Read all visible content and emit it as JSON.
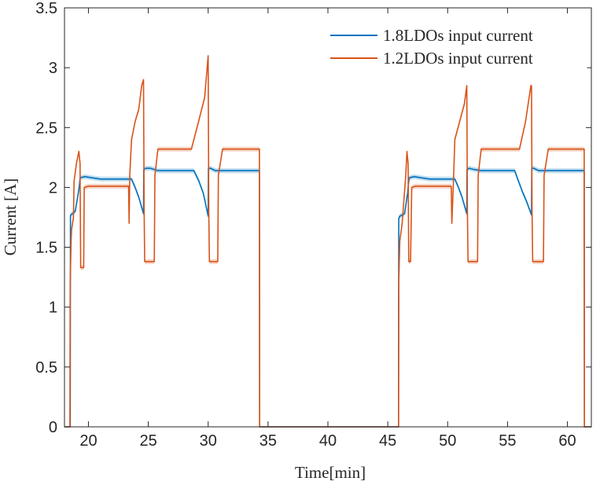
{
  "chart_data": {
    "type": "line",
    "title": "",
    "xlabel": "Time[min]",
    "ylabel": "Current [A]",
    "xlim": [
      18,
      62
    ],
    "ylim": [
      0,
      3.5
    ],
    "xticks": [
      20,
      25,
      30,
      35,
      40,
      45,
      50,
      55,
      60
    ],
    "yticks": [
      0,
      0.5,
      1,
      1.5,
      2,
      2.5,
      3,
      3.5
    ],
    "xtick_labels": [
      "20",
      "25",
      "30",
      "35",
      "40",
      "45",
      "50",
      "55",
      "60"
    ],
    "ytick_labels": [
      "0",
      "0.5",
      "1",
      "1.5",
      "2",
      "2.5",
      "3",
      "3.5"
    ],
    "grid": false,
    "legend_position": "top-right",
    "colors": {
      "series1": "#0072BD",
      "series2": "#D95319",
      "axis": "#262626"
    },
    "series": [
      {
        "name": "1.8LDOs input current",
        "x": [
          18.0,
          18.48,
          18.5,
          18.52,
          18.9,
          19.15,
          19.25,
          19.3,
          19.7,
          20.3,
          21.0,
          23.0,
          23.6,
          23.9,
          24.2,
          24.6,
          24.62,
          24.8,
          25.2,
          25.8,
          26.5,
          28.0,
          28.8,
          29.2,
          29.6,
          30.0,
          30.02,
          30.2,
          30.6,
          31.2,
          32.0,
          34.28,
          34.3,
          34.4,
          45.9,
          45.92,
          46.0,
          46.4,
          46.65,
          46.75,
          46.8,
          47.2,
          47.8,
          48.5,
          50.6,
          50.9,
          51.2,
          51.6,
          51.62,
          51.8,
          52.2,
          52.8,
          53.5,
          55.6,
          56.0,
          56.3,
          56.6,
          57.0,
          57.02,
          57.2,
          57.6,
          58.2,
          59.0,
          61.4,
          61.42,
          61.5,
          62.0
        ],
        "y": [
          0,
          0,
          1.76,
          1.77,
          1.8,
          1.95,
          2.02,
          2.08,
          2.09,
          2.08,
          2.07,
          2.07,
          2.07,
          2.0,
          1.92,
          1.78,
          2.15,
          2.16,
          2.16,
          2.14,
          2.14,
          2.14,
          2.14,
          2.06,
          1.95,
          1.76,
          2.16,
          2.16,
          2.14,
          2.14,
          2.14,
          2.14,
          0,
          0,
          0,
          1.74,
          1.76,
          1.78,
          1.95,
          2.05,
          2.08,
          2.09,
          2.08,
          2.07,
          2.07,
          2.0,
          1.92,
          1.78,
          2.15,
          2.16,
          2.15,
          2.14,
          2.14,
          2.14,
          2.03,
          1.95,
          1.88,
          1.77,
          2.16,
          2.16,
          2.14,
          2.14,
          2.14,
          2.14,
          0,
          0,
          0
        ]
      },
      {
        "name": "1.2LDOs input current",
        "x": [
          18.0,
          18.45,
          18.48,
          18.55,
          18.6,
          18.75,
          18.8,
          19.0,
          19.2,
          19.3,
          19.35,
          19.6,
          19.65,
          20.0,
          23.35,
          23.4,
          23.45,
          23.6,
          23.9,
          24.2,
          24.45,
          24.6,
          24.65,
          24.7,
          25.5,
          25.55,
          25.8,
          26.0,
          28.6,
          29.2,
          29.7,
          30.0,
          30.05,
          30.1,
          30.8,
          30.85,
          31.2,
          34.28,
          34.3,
          45.9,
          45.92,
          46.0,
          46.2,
          46.5,
          46.6,
          46.7,
          46.75,
          46.9,
          47.0,
          47.3,
          50.3,
          50.35,
          50.5,
          50.6,
          51.0,
          51.4,
          51.6,
          51.65,
          51.7,
          52.5,
          52.55,
          52.8,
          53.2,
          56.0,
          56.5,
          56.95,
          57.0,
          57.05,
          57.1,
          58.0,
          58.05,
          58.4,
          61.4,
          61.42,
          61.5,
          62.0
        ],
        "y": [
          0,
          0,
          1.2,
          1.55,
          1.65,
          1.75,
          2.05,
          2.2,
          2.3,
          2.2,
          1.33,
          1.33,
          2.0,
          2.01,
          2.01,
          1.7,
          2.1,
          2.4,
          2.55,
          2.65,
          2.85,
          2.9,
          1.8,
          1.38,
          1.38,
          2.1,
          2.32,
          2.32,
          2.32,
          2.55,
          2.75,
          3.1,
          1.8,
          1.38,
          1.38,
          2.1,
          2.32,
          2.32,
          0,
          0,
          1.2,
          1.55,
          1.7,
          2.1,
          2.3,
          2.2,
          1.38,
          1.38,
          2.0,
          2.01,
          2.01,
          1.7,
          2.1,
          2.4,
          2.55,
          2.7,
          2.85,
          1.8,
          1.38,
          1.38,
          2.1,
          2.32,
          2.32,
          2.32,
          2.55,
          2.85,
          2.85,
          1.8,
          1.38,
          1.38,
          2.1,
          2.32,
          2.32,
          0,
          0,
          0
        ]
      }
    ]
  }
}
